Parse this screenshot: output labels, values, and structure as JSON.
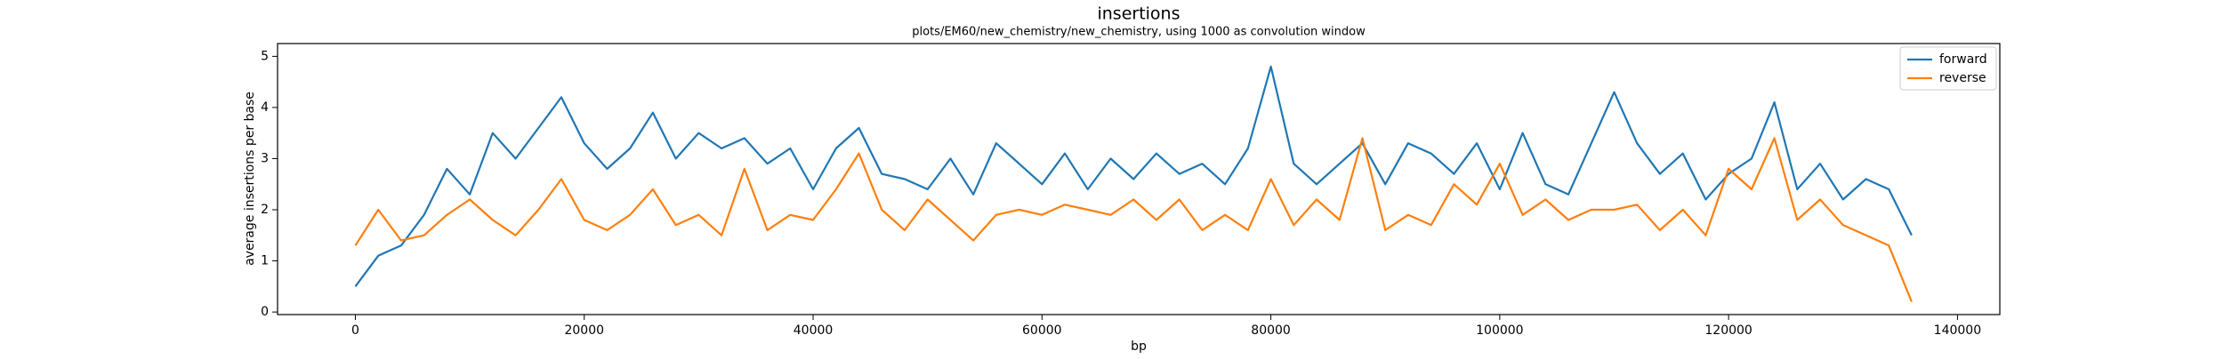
{
  "chart_data": {
    "type": "line",
    "title": "insertions",
    "subtitle": "plots/EM60/new_chemistry/new_chemistry, using 1000 as convolution window",
    "xlabel": "bp",
    "ylabel": "average insertions per base",
    "x": [
      0,
      2000,
      4000,
      6000,
      8000,
      10000,
      12000,
      14000,
      16000,
      18000,
      20000,
      22000,
      24000,
      26000,
      28000,
      30000,
      32000,
      34000,
      36000,
      38000,
      40000,
      42000,
      44000,
      46000,
      48000,
      50000,
      52000,
      54000,
      56000,
      58000,
      60000,
      62000,
      64000,
      66000,
      68000,
      70000,
      72000,
      74000,
      76000,
      78000,
      80000,
      82000,
      84000,
      86000,
      88000,
      90000,
      92000,
      94000,
      96000,
      98000,
      100000,
      102000,
      104000,
      106000,
      108000,
      110000,
      112000,
      114000,
      116000,
      118000,
      120000,
      122000,
      124000,
      126000,
      128000,
      130000,
      132000,
      134000,
      136000
    ],
    "series": [
      {
        "name": "forward",
        "color": "#1f77b4",
        "values": [
          0.5,
          1.1,
          1.3,
          1.9,
          2.8,
          2.3,
          3.5,
          3.0,
          3.6,
          4.2,
          3.3,
          2.8,
          3.2,
          3.9,
          3.0,
          3.5,
          3.2,
          3.4,
          2.9,
          3.2,
          2.4,
          3.2,
          3.6,
          2.7,
          2.6,
          2.4,
          3.0,
          2.3,
          3.3,
          2.9,
          2.5,
          3.1,
          2.4,
          3.0,
          2.6,
          3.1,
          2.7,
          2.9,
          2.5,
          3.2,
          4.8,
          2.9,
          2.5,
          2.9,
          3.3,
          2.5,
          3.3,
          3.1,
          2.7,
          3.3,
          2.4,
          3.5,
          2.5,
          2.3,
          3.3,
          4.3,
          3.3,
          2.7,
          3.1,
          2.2,
          2.7,
          3.0,
          4.1,
          2.4,
          2.9,
          2.2,
          2.6,
          2.4,
          1.5
        ]
      },
      {
        "name": "reverse",
        "color": "#ff7f0e",
        "values": [
          1.3,
          2.0,
          1.4,
          1.5,
          1.9,
          2.2,
          1.8,
          1.5,
          2.0,
          2.6,
          1.8,
          1.6,
          1.9,
          2.4,
          1.7,
          1.9,
          1.5,
          2.8,
          1.6,
          1.9,
          1.8,
          2.4,
          3.1,
          2.0,
          1.6,
          2.2,
          1.8,
          1.4,
          1.9,
          2.0,
          1.9,
          2.1,
          2.0,
          1.9,
          2.2,
          1.8,
          2.2,
          1.6,
          1.9,
          1.6,
          2.6,
          1.7,
          2.2,
          1.8,
          3.4,
          1.6,
          1.9,
          1.7,
          2.5,
          2.1,
          2.9,
          1.9,
          2.2,
          1.8,
          2.0,
          2.0,
          2.1,
          1.6,
          2.0,
          1.5,
          2.8,
          2.4,
          3.4,
          1.8,
          2.2,
          1.7,
          1.5,
          1.3,
          0.2
        ]
      }
    ],
    "xlim": [
      -6800,
      143700
    ],
    "ylim": [
      -0.05,
      5.25
    ],
    "xticks": [
      0,
      20000,
      40000,
      60000,
      80000,
      100000,
      120000,
      140000
    ],
    "yticks": [
      0,
      1,
      2,
      3,
      4,
      5
    ],
    "legend": "upper right"
  }
}
